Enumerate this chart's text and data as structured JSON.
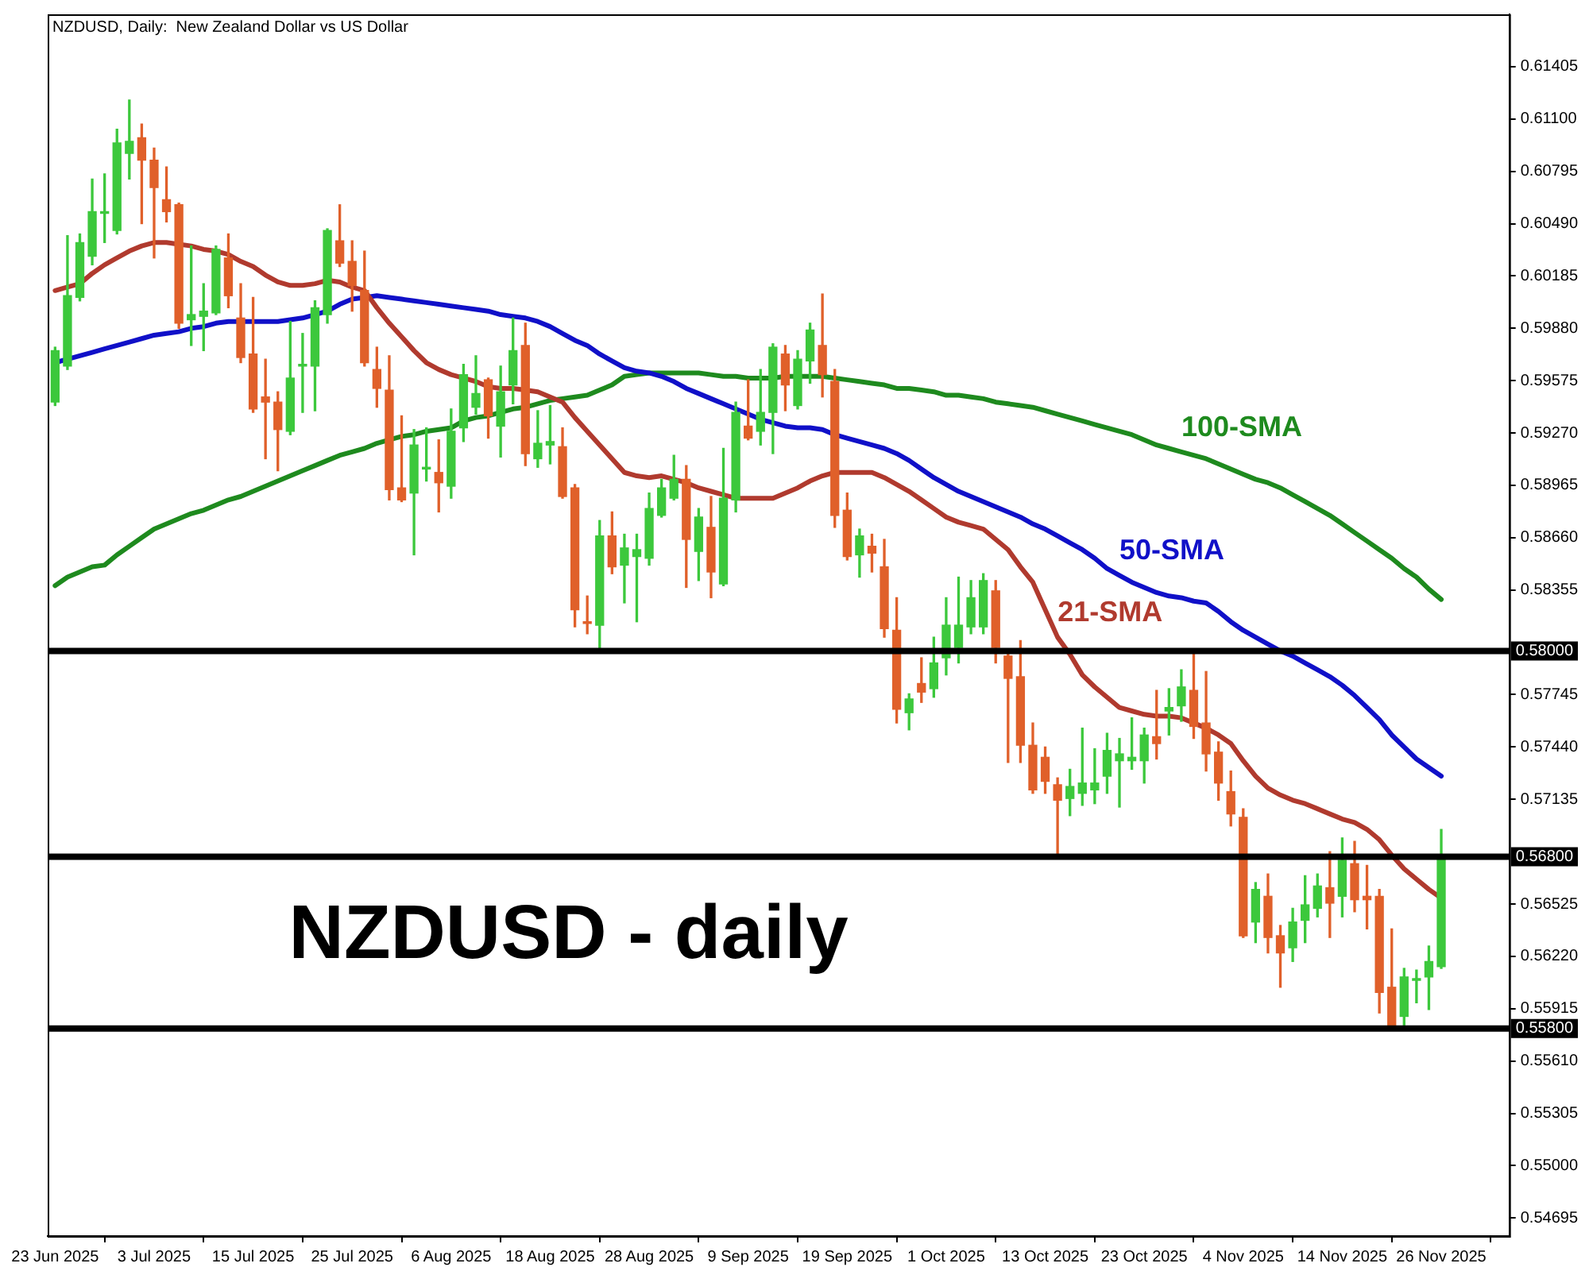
{
  "chart_data": {
    "type": "candlestick",
    "title": "NZDUSD, Daily:  New Zealand Dollar vs US Dollar",
    "categories": [
      "23 Jun 2025",
      null,
      null,
      null,
      null,
      null,
      null,
      null,
      "3 Jul 2025",
      null,
      null,
      null,
      null,
      null,
      null,
      null,
      "15 Jul 2025",
      null,
      null,
      null,
      null,
      null,
      null,
      null,
      "25 Jul 2025",
      null,
      null,
      null,
      null,
      null,
      null,
      null,
      "6 Aug 2025",
      null,
      null,
      null,
      null,
      null,
      null,
      null,
      "18 Aug 2025",
      null,
      null,
      null,
      null,
      null,
      null,
      null,
      "28 Aug 2025",
      null,
      null,
      null,
      null,
      null,
      null,
      null,
      "9 Sep 2025",
      null,
      null,
      null,
      null,
      null,
      null,
      null,
      "19 Sep 2025",
      null,
      null,
      null,
      null,
      null,
      null,
      null,
      "1 Oct 2025",
      null,
      null,
      null,
      null,
      null,
      null,
      null,
      "13 Oct 2025",
      null,
      null,
      null,
      null,
      null,
      null,
      null,
      "23 Oct 2025",
      null,
      null,
      null,
      null,
      null,
      null,
      null,
      "4 Nov 2025",
      null,
      null,
      null,
      null,
      null,
      null,
      null,
      "14 Nov 2025",
      null,
      null,
      null,
      null,
      null,
      null,
      null,
      "26 Nov 2025"
    ],
    "series": [
      {
        "type": "candlestick",
        "ohlc": [
          [
            0.5945,
            0.5977,
            0.5943,
            0.5975
          ],
          [
            0.5966,
            0.6042,
            0.5964,
            0.6007
          ],
          [
            0.6006,
            0.6043,
            0.6004,
            0.6038
          ],
          [
            0.603,
            0.6075,
            0.6025,
            0.6056
          ],
          [
            0.6055,
            0.6078,
            0.6038,
            0.6056
          ],
          [
            0.6045,
            0.6104,
            0.6043,
            0.6096
          ],
          [
            0.609,
            0.6121,
            0.6075,
            0.6097
          ],
          [
            0.6099,
            0.6107,
            0.6049,
            0.6086
          ],
          [
            0.6086,
            0.6093,
            0.6029,
            0.607
          ],
          [
            0.6063,
            0.6082,
            0.605,
            0.6056
          ],
          [
            0.606,
            0.6061,
            0.5988,
            0.5991
          ],
          [
            0.5993,
            0.6036,
            0.5978,
            0.5996
          ],
          [
            0.5995,
            0.6014,
            0.5975,
            0.5998
          ],
          [
            0.5997,
            0.6036,
            0.5996,
            0.6034
          ],
          [
            0.6029,
            0.6043,
            0.6,
            0.6007
          ],
          [
            0.5994,
            0.6014,
            0.5968,
            0.5971
          ],
          [
            0.5973,
            0.6006,
            0.5939,
            0.5941
          ],
          [
            0.5948,
            0.597,
            0.5912,
            0.5945
          ],
          [
            0.5945,
            0.5951,
            0.5905,
            0.5929
          ],
          [
            0.5928,
            0.5992,
            0.5926,
            0.5959
          ],
          [
            0.5966,
            0.5985,
            0.5939,
            0.5967
          ],
          [
            0.5966,
            0.6004,
            0.594,
            0.6
          ],
          [
            0.5996,
            0.6046,
            0.5991,
            0.6045
          ],
          [
            0.6039,
            0.606,
            0.6024,
            0.6026
          ],
          [
            0.6027,
            0.6039,
            0.5998,
            0.6013
          ],
          [
            0.601,
            0.6033,
            0.5966,
            0.5968
          ],
          [
            0.5964,
            0.5977,
            0.5942,
            0.5953
          ],
          [
            0.5952,
            0.5972,
            0.5888,
            0.5894
          ],
          [
            0.5895,
            0.5937,
            0.5887,
            0.5888
          ],
          [
            0.5892,
            0.5929,
            0.5856,
            0.592
          ],
          [
            0.5906,
            0.593,
            0.5899,
            0.5907
          ],
          [
            0.5904,
            0.5923,
            0.5881,
            0.5898
          ],
          [
            0.5896,
            0.5941,
            0.5889,
            0.5928
          ],
          [
            0.593,
            0.5967,
            0.5922,
            0.5961
          ],
          [
            0.5942,
            0.5972,
            0.5938,
            0.595
          ],
          [
            0.5958,
            0.5959,
            0.5924,
            0.5937
          ],
          [
            0.5931,
            0.5966,
            0.5913,
            0.5951
          ],
          [
            0.5955,
            0.5994,
            0.5944,
            0.5975
          ],
          [
            0.5978,
            0.5991,
            0.5908,
            0.5915
          ],
          [
            0.5912,
            0.594,
            0.5907,
            0.5921
          ],
          [
            0.592,
            0.5943,
            0.5909,
            0.5922
          ],
          [
            0.5919,
            0.593,
            0.5889,
            0.589
          ],
          [
            0.5895,
            0.5897,
            0.5814,
            0.5824
          ],
          [
            0.5817,
            0.5832,
            0.581,
            0.5816
          ],
          [
            0.5815,
            0.5876,
            0.58,
            0.5867
          ],
          [
            0.5867,
            0.5881,
            0.5845,
            0.5849
          ],
          [
            0.585,
            0.5868,
            0.5828,
            0.586
          ],
          [
            0.5855,
            0.5868,
            0.5817,
            0.5859
          ],
          [
            0.5854,
            0.5892,
            0.585,
            0.5883
          ],
          [
            0.5879,
            0.59,
            0.5878,
            0.5895
          ],
          [
            0.5889,
            0.5914,
            0.5888,
            0.59
          ],
          [
            0.59,
            0.5908,
            0.5837,
            0.5865
          ],
          [
            0.5858,
            0.5883,
            0.5841,
            0.5878
          ],
          [
            0.5872,
            0.589,
            0.5831,
            0.5846
          ],
          [
            0.5839,
            0.5918,
            0.5838,
            0.5889
          ],
          [
            0.5888,
            0.5945,
            0.5881,
            0.5939
          ],
          [
            0.5931,
            0.5958,
            0.5923,
            0.5924
          ],
          [
            0.5928,
            0.5964,
            0.592,
            0.5939
          ],
          [
            0.5939,
            0.5979,
            0.5915,
            0.5977
          ],
          [
            0.5973,
            0.5978,
            0.594,
            0.5955
          ],
          [
            0.5943,
            0.5975,
            0.5941,
            0.597
          ],
          [
            0.5969,
            0.5991,
            0.5956,
            0.5987
          ],
          [
            0.5978,
            0.6008,
            0.5948,
            0.5961
          ],
          [
            0.5957,
            0.5964,
            0.5872,
            0.5879
          ],
          [
            0.5882,
            0.5892,
            0.5853,
            0.5855
          ],
          [
            0.5856,
            0.5871,
            0.5843,
            0.5867
          ],
          [
            0.5861,
            0.5868,
            0.5846,
            0.5857
          ],
          [
            0.5849,
            0.5865,
            0.5808,
            0.5813
          ],
          [
            0.5812,
            0.5831,
            0.5758,
            0.5766
          ],
          [
            0.5764,
            0.5775,
            0.5754,
            0.5772
          ],
          [
            0.5781,
            0.5796,
            0.577,
            0.5776
          ],
          [
            0.5778,
            0.5808,
            0.5773,
            0.5793
          ],
          [
            0.5796,
            0.5831,
            0.5786,
            0.5815
          ],
          [
            0.5802,
            0.5843,
            0.5793,
            0.5815
          ],
          [
            0.5814,
            0.5841,
            0.581,
            0.5831
          ],
          [
            0.5814,
            0.5845,
            0.581,
            0.5841
          ],
          [
            0.5835,
            0.5841,
            0.5793,
            0.5802
          ],
          [
            0.5797,
            0.5799,
            0.5735,
            0.5784
          ],
          [
            0.5785,
            0.5806,
            0.5735,
            0.5745
          ],
          [
            0.5745,
            0.5758,
            0.5717,
            0.5719
          ],
          [
            0.5738,
            0.5744,
            0.5717,
            0.5724
          ],
          [
            0.5722,
            0.5726,
            0.5681,
            0.5713
          ],
          [
            0.5714,
            0.5731,
            0.5704,
            0.5721
          ],
          [
            0.5717,
            0.5755,
            0.571,
            0.5723
          ],
          [
            0.5719,
            0.5743,
            0.5711,
            0.5723
          ],
          [
            0.5727,
            0.5752,
            0.5717,
            0.5742
          ],
          [
            0.5736,
            0.5749,
            0.5709,
            0.574
          ],
          [
            0.5736,
            0.5761,
            0.5731,
            0.5738
          ],
          [
            0.5736,
            0.5755,
            0.5723,
            0.5751
          ],
          [
            0.575,
            0.5777,
            0.5737,
            0.5746
          ],
          [
            0.5765,
            0.5778,
            0.5751,
            0.5767
          ],
          [
            0.5768,
            0.5789,
            0.5759,
            0.5779
          ],
          [
            0.5777,
            0.5799,
            0.5749,
            0.5756
          ],
          [
            0.5758,
            0.5788,
            0.573,
            0.574
          ],
          [
            0.5741,
            0.5747,
            0.5713,
            0.5723
          ],
          [
            0.5718,
            0.573,
            0.5698,
            0.5705
          ],
          [
            0.5703,
            0.5708,
            0.5633,
            0.5634
          ],
          [
            0.5642,
            0.5665,
            0.563,
            0.5661
          ],
          [
            0.5657,
            0.567,
            0.5624,
            0.5633
          ],
          [
            0.5634,
            0.564,
            0.5604,
            0.5624
          ],
          [
            0.5627,
            0.565,
            0.5619,
            0.5642
          ],
          [
            0.5643,
            0.5669,
            0.563,
            0.5652
          ],
          [
            0.565,
            0.567,
            0.5645,
            0.5663
          ],
          [
            0.5662,
            0.5683,
            0.5633,
            0.5653
          ],
          [
            0.5657,
            0.5691,
            0.5645,
            0.5678
          ],
          [
            0.5676,
            0.5689,
            0.5648,
            0.5655
          ],
          [
            0.5657,
            0.5675,
            0.5638,
            0.5655
          ],
          [
            0.5657,
            0.5661,
            0.5589,
            0.5601
          ],
          [
            0.5604,
            0.5638,
            0.558,
            0.5581
          ],
          [
            0.5587,
            0.5615,
            0.5582,
            0.561
          ],
          [
            0.5608,
            0.5614,
            0.5595,
            0.5609
          ],
          [
            0.561,
            0.5628,
            0.5591,
            0.5619
          ],
          [
            0.5616,
            0.5696,
            0.5615,
            0.5679
          ]
        ],
        "colors": [
          "#3cc83c",
          "#3cc83c",
          "#3cc83c",
          "#3cc83c",
          "#3cc83c",
          "#3cc83c",
          "#3cc83c",
          "#e0602a",
          "#e0602a",
          "#e0602a",
          "#e0602a",
          "#3cc83c",
          "#3cc83c",
          "#3cc83c",
          "#e0602a",
          "#e0602a",
          "#e0602a",
          "#e0602a",
          "#e0602a",
          "#3cc83c",
          "#3cc83c",
          "#3cc83c",
          "#3cc83c",
          "#e0602a",
          "#e0602a",
          "#e0602a",
          "#e0602a",
          "#e0602a",
          "#e0602a",
          "#3cc83c",
          "#3cc83c",
          "#e0602a",
          "#3cc83c",
          "#3cc83c",
          "#3cc83c",
          "#e0602a",
          "#3cc83c",
          "#3cc83c",
          "#e0602a",
          "#3cc83c",
          "#3cc83c",
          "#e0602a",
          "#e0602a",
          "#e0602a",
          "#3cc83c",
          "#e0602a",
          "#3cc83c",
          "#3cc83c",
          "#3cc83c",
          "#3cc83c",
          "#3cc83c",
          "#e0602a",
          "#3cc83c",
          "#e0602a",
          "#3cc83c",
          "#3cc83c",
          "#e0602a",
          "#3cc83c",
          "#3cc83c",
          "#e0602a",
          "#3cc83c",
          "#3cc83c",
          "#e0602a",
          "#e0602a",
          "#e0602a",
          "#3cc83c",
          "#e0602a",
          "#e0602a",
          "#e0602a",
          "#3cc83c",
          "#e0602a",
          "#3cc83c",
          "#3cc83c",
          "#3cc83c",
          "#3cc83c",
          "#3cc83c",
          "#e0602a",
          "#e0602a",
          "#e0602a",
          "#e0602a",
          "#e0602a",
          "#e0602a",
          "#3cc83c",
          "#3cc83c",
          "#3cc83c",
          "#3cc83c",
          "#3cc83c",
          "#3cc83c",
          "#3cc83c",
          "#e0602a",
          "#3cc83c",
          "#3cc83c",
          "#e0602a",
          "#e0602a",
          "#e0602a",
          "#e0602a",
          "#e0602a",
          "#3cc83c",
          "#e0602a",
          "#e0602a",
          "#3cc83c",
          "#3cc83c",
          "#3cc83c",
          "#e0602a",
          "#3cc83c",
          "#e0602a",
          "#e0602a",
          "#e0602a",
          "#e0602a",
          "#3cc83c",
          "#3cc83c",
          "#3cc83c",
          "#3cc83c"
        ]
      },
      {
        "type": "line",
        "name": "21-SMA",
        "color": "#b03a2e",
        "values": [
          0.601,
          0.6012,
          0.6014,
          0.602,
          0.6025,
          0.6029,
          0.6033,
          0.6036,
          0.6038,
          0.6038,
          0.6037,
          0.6036,
          0.6034,
          0.6033,
          0.6031,
          0.6027,
          0.6024,
          0.6019,
          0.6015,
          0.6013,
          0.6013,
          0.6014,
          0.6016,
          0.6015,
          0.6012,
          0.601,
          0.6,
          0.5991,
          0.5983,
          0.5975,
          0.5968,
          0.5964,
          0.5961,
          0.5959,
          0.5957,
          0.5954,
          0.5953,
          0.5953,
          0.5952,
          0.5951,
          0.5948,
          0.5945,
          0.5936,
          0.5928,
          0.592,
          0.5912,
          0.5904,
          0.5902,
          0.5901,
          0.5902,
          0.59,
          0.5898,
          0.5895,
          0.5893,
          0.5891,
          0.5889,
          0.5889,
          0.5889,
          0.5889,
          0.5892,
          0.5895,
          0.5899,
          0.5902,
          0.5904,
          0.5904,
          0.5904,
          0.5904,
          0.5901,
          0.5897,
          0.5893,
          0.5888,
          0.5883,
          0.5878,
          0.5875,
          0.5873,
          0.5871,
          0.5865,
          0.5859,
          0.5849,
          0.584,
          0.5824,
          0.5808,
          0.5798,
          0.5786,
          0.5779,
          0.5773,
          0.5767,
          0.5765,
          0.5763,
          0.5762,
          0.5762,
          0.5761,
          0.5758,
          0.5755,
          0.5751,
          0.5746,
          0.5736,
          0.5727,
          0.572,
          0.5716,
          0.5713,
          0.5711,
          0.5708,
          0.5705,
          0.5702,
          0.57,
          0.5696,
          0.569,
          0.5681,
          0.5673,
          0.5667,
          0.5661,
          0.5656
        ]
      },
      {
        "type": "line",
        "name": "50-SMA",
        "color": "#1010c8",
        "values": [
          0.5968,
          0.597,
          0.5972,
          0.5974,
          0.5976,
          0.5978,
          0.598,
          0.5982,
          0.5984,
          0.5985,
          0.5986,
          0.5988,
          0.5989,
          0.5991,
          0.5992,
          0.5992,
          0.5992,
          0.5992,
          0.5992,
          0.5993,
          0.5994,
          0.5996,
          0.5998,
          0.6002,
          0.6005,
          0.6006,
          0.6007,
          0.6006,
          0.6005,
          0.6004,
          0.6003,
          0.6002,
          0.6001,
          0.6,
          0.5999,
          0.5998,
          0.5996,
          0.5995,
          0.5994,
          0.5992,
          0.5989,
          0.5985,
          0.5981,
          0.5978,
          0.5973,
          0.5969,
          0.5965,
          0.5963,
          0.5962,
          0.596,
          0.5957,
          0.5953,
          0.595,
          0.5947,
          0.5944,
          0.5941,
          0.5938,
          0.5935,
          0.5933,
          0.5931,
          0.593,
          0.593,
          0.5929,
          0.5926,
          0.5924,
          0.5922,
          0.592,
          0.5918,
          0.5915,
          0.5911,
          0.5906,
          0.5901,
          0.5897,
          0.5893,
          0.589,
          0.5887,
          0.5884,
          0.5881,
          0.5878,
          0.5874,
          0.5871,
          0.5867,
          0.5863,
          0.5859,
          0.5854,
          0.5848,
          0.5844,
          0.584,
          0.5837,
          0.5834,
          0.5832,
          0.5831,
          0.5829,
          0.5828,
          0.5823,
          0.5817,
          0.5812,
          0.5808,
          0.5804,
          0.58,
          0.5797,
          0.5793,
          0.5789,
          0.5785,
          0.578,
          0.5774,
          0.5767,
          0.576,
          0.5751,
          0.5744,
          0.5737,
          0.5732,
          0.5727
        ]
      },
      {
        "type": "line",
        "name": "100-SMA",
        "color": "#1e8a1e",
        "values": [
          0.5838,
          0.5843,
          0.5846,
          0.5849,
          0.585,
          0.5856,
          0.5861,
          0.5866,
          0.5871,
          0.5874,
          0.5877,
          0.588,
          0.5882,
          0.5885,
          0.5888,
          0.589,
          0.5893,
          0.5896,
          0.5899,
          0.5902,
          0.5905,
          0.5908,
          0.5911,
          0.5914,
          0.5916,
          0.5918,
          0.5921,
          0.5923,
          0.5925,
          0.5926,
          0.5928,
          0.5929,
          0.593,
          0.5934,
          0.5936,
          0.5937,
          0.5939,
          0.5941,
          0.5942,
          0.5944,
          0.5946,
          0.5947,
          0.5948,
          0.5949,
          0.5952,
          0.5955,
          0.596,
          0.5961,
          0.5962,
          0.5962,
          0.5962,
          0.5962,
          0.5962,
          0.5961,
          0.596,
          0.596,
          0.5959,
          0.5959,
          0.5959,
          0.596,
          0.596,
          0.596,
          0.596,
          0.5959,
          0.5958,
          0.5957,
          0.5956,
          0.5955,
          0.5953,
          0.5953,
          0.5952,
          0.5951,
          0.5949,
          0.5949,
          0.5948,
          0.5947,
          0.5945,
          0.5944,
          0.5943,
          0.5942,
          0.594,
          0.5938,
          0.5936,
          0.5934,
          0.5932,
          0.593,
          0.5928,
          0.5926,
          0.5923,
          0.592,
          0.5918,
          0.5916,
          0.5914,
          0.5912,
          0.5909,
          0.5906,
          0.5903,
          0.59,
          0.5898,
          0.5895,
          0.5891,
          0.5887,
          0.5883,
          0.5879,
          0.5874,
          0.5869,
          0.5864,
          0.5859,
          0.5854,
          0.5848,
          0.5843,
          0.5836,
          0.583
        ]
      }
    ],
    "ylim": [
      0.5459,
      0.6171
    ],
    "yticks": [
      0.61405,
      {
        "value": 0.611,
        "label": "0.61100"
      },
      0.60795,
      {
        "value": 0.6049,
        "label": "0.60490"
      },
      0.60185,
      {
        "value": 0.5988,
        "label": "0.59880"
      },
      0.59575,
      {
        "value": 0.5927,
        "label": "0.59270"
      },
      0.58965,
      {
        "value": 0.5866,
        "label": "0.58660"
      },
      0.58355,
      0.57745,
      {
        "value": 0.5744,
        "label": "0.57440"
      },
      0.57135,
      0.56525,
      {
        "value": 0.5622,
        "label": "0.56220"
      },
      0.55915,
      {
        "value": 0.5561,
        "label": "0.55610"
      },
      0.55305,
      {
        "value": 0.55,
        "label": "0.55000"
      },
      0.54695
    ],
    "ref_lines": [
      {
        "axis": "y",
        "value": 0.58,
        "label": "0.58000",
        "color": "#000000"
      },
      {
        "axis": "y",
        "value": 0.568,
        "label": "0.56800",
        "color": "#000000"
      },
      {
        "axis": "y",
        "value": 0.558,
        "label": "0.55800",
        "color": "#000000"
      }
    ],
    "annotations": [
      "NZDUSD - daily"
    ]
  }
}
